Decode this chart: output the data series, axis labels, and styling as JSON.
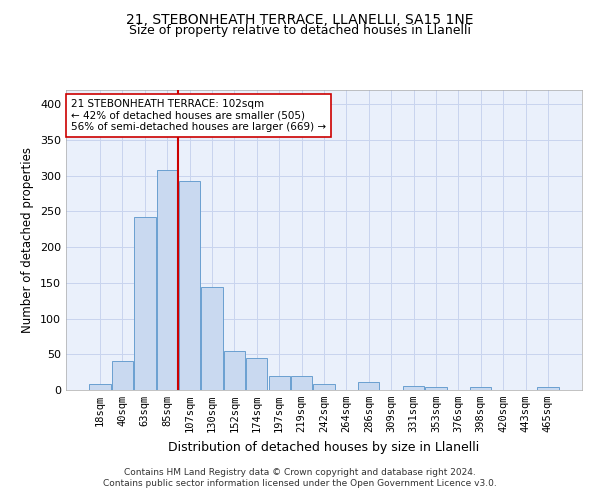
{
  "title1": "21, STEBONHEATH TERRACE, LLANELLI, SA15 1NE",
  "title2": "Size of property relative to detached houses in Llanelli",
  "xlabel": "Distribution of detached houses by size in Llanelli",
  "ylabel": "Number of detached properties",
  "bar_labels": [
    "18sqm",
    "40sqm",
    "63sqm",
    "85sqm",
    "107sqm",
    "130sqm",
    "152sqm",
    "174sqm",
    "197sqm",
    "219sqm",
    "242sqm",
    "264sqm",
    "286sqm",
    "309sqm",
    "331sqm",
    "353sqm",
    "376sqm",
    "398sqm",
    "420sqm",
    "443sqm",
    "465sqm"
  ],
  "bar_values": [
    8,
    40,
    242,
    308,
    292,
    144,
    55,
    45,
    20,
    20,
    8,
    0,
    11,
    0,
    5,
    4,
    0,
    4,
    0,
    0,
    4
  ],
  "bar_color": "#c9d9f0",
  "bar_edge_color": "#6a9fd0",
  "grid_color": "#c8d4ee",
  "background_color": "#eaf0fb",
  "vline_color": "#cc0000",
  "vline_x": 3.5,
  "annotation_text": "21 STEBONHEATH TERRACE: 102sqm\n← 42% of detached houses are smaller (505)\n56% of semi-detached houses are larger (669) →",
  "annotation_box_color": "#ffffff",
  "annotation_box_edge": "#cc0000",
  "footnote1": "Contains HM Land Registry data © Crown copyright and database right 2024.",
  "footnote2": "Contains public sector information licensed under the Open Government Licence v3.0.",
  "ylim": [
    0,
    420
  ],
  "yticks": [
    0,
    50,
    100,
    150,
    200,
    250,
    300,
    350,
    400
  ],
  "title1_fontsize": 10,
  "title2_fontsize": 9,
  "ylabel_fontsize": 8.5,
  "xlabel_fontsize": 9,
  "tick_fontsize": 7.5,
  "ann_fontsize": 7.5
}
